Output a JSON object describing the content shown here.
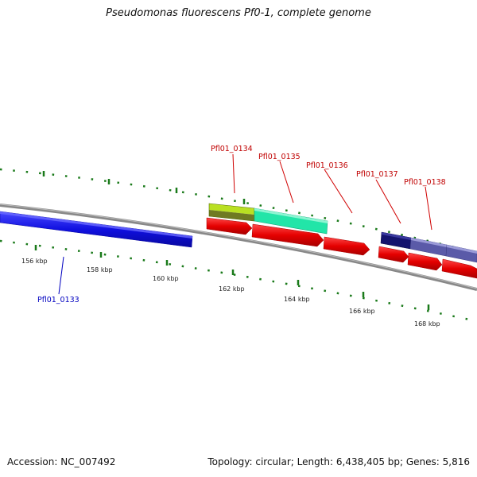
{
  "title": "Pseudomonas fluorescens Pf0-1, complete genome",
  "footer": {
    "accession": "Accession: NC_007492",
    "summary": "Topology: circular; Length: 6,438,405 bp; Genes: 5,816"
  },
  "ticks": [
    "156 kbp",
    "158 kbp",
    "160 kbp",
    "162 kbp",
    "164 kbp",
    "166 kbp",
    "168 kbp"
  ],
  "genes": [
    {
      "locus": "Pfl01_0133",
      "strand": "reverse",
      "color": "#1010e0"
    },
    {
      "locus": "Pfl01_0134",
      "strand": "reverse",
      "color": "#aad11a"
    },
    {
      "locus": "Pfl01_0135",
      "strand": "reverse",
      "color": "#22e5a8"
    },
    {
      "locus": "Pfl01_0136",
      "strand": "forward",
      "color": "#e50000"
    },
    {
      "locus": "Pfl01_0137",
      "strand": "reverse",
      "color": "#14146e"
    },
    {
      "locus": "Pfl01_0138",
      "strand": "reverse",
      "color": "#5a5aa8"
    }
  ],
  "colors": {
    "forward_cds": "#e50000",
    "backbone": "#888888",
    "tick_marks": "#1a7a1a",
    "forward_label": "#c00000",
    "reverse_label": "#0000c0"
  }
}
